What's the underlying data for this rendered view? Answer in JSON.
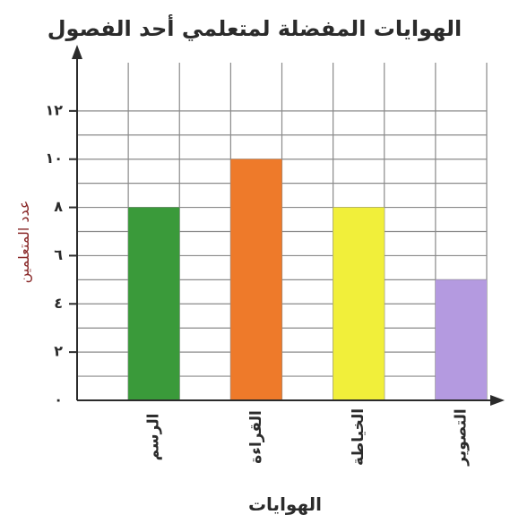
{
  "chart_data": {
    "type": "bar",
    "title": "الهوايات المفضلة لمتعلمي أحد الفصول",
    "xlabel": "الهوايات",
    "ylabel": "عدد المتعلمين",
    "categories": [
      "الرسم",
      "القراءة",
      "الخياطة",
      "التصوير"
    ],
    "values": [
      8,
      10,
      8,
      5
    ],
    "colors": [
      "#3a9a3a",
      "#ee7a2a",
      "#f1ef3a",
      "#b49ae0"
    ],
    "ylim": [
      0,
      14
    ],
    "yticks": [
      0,
      2,
      4,
      6,
      8,
      10,
      12
    ],
    "ytick_labels": [
      "٠",
      "٢",
      "٤",
      "٦",
      "٨",
      "١٠",
      "١٢"
    ],
    "grid": true,
    "legend": "none"
  }
}
